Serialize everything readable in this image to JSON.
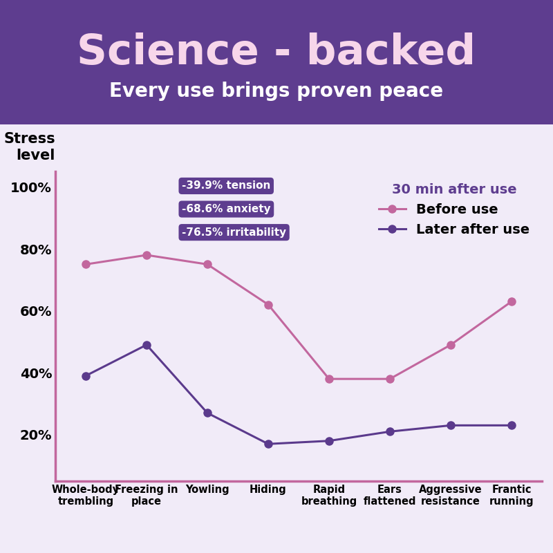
{
  "chart_data": {
    "type": "line",
    "title": "Science - backed",
    "subtitle": "Every use brings proven peace",
    "y_label": "Stress level",
    "legend_title": "30 min after use",
    "annotations": [
      "-39.9% tension",
      "-68.6% anxiety",
      "-76.5% irritability"
    ],
    "categories": [
      "Whole-body trembling",
      "Freezing in place",
      "Yowling",
      "Hiding",
      "Rapid breathing",
      "Ears flattened",
      "Aggressive resistance",
      "Frantic running"
    ],
    "series": [
      {
        "name": "Before use",
        "color": "#c2679e",
        "marker": "o",
        "line_style": "solid",
        "values": [
          75,
          78,
          75,
          62,
          38,
          38,
          49,
          63
        ]
      },
      {
        "name": "Later after use",
        "color": "#5b3a8c",
        "marker": "o",
        "line_style": "solid",
        "values": [
          39,
          49,
          27,
          17,
          18,
          21,
          23,
          23
        ]
      }
    ],
    "ylim": [
      5,
      105
    ],
    "yticks": [
      {
        "value": 20,
        "label": "20%"
      },
      {
        "value": 40,
        "label": "40%"
      },
      {
        "value": 60,
        "label": "60%"
      },
      {
        "value": 80,
        "label": "80%"
      },
      {
        "value": 100,
        "label": "100%"
      }
    ],
    "grid": false,
    "legend": "upper right"
  }
}
